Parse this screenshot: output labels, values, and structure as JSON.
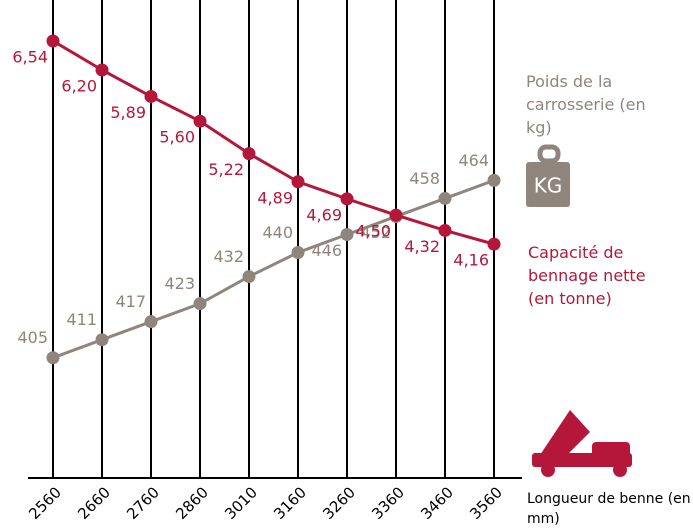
{
  "chart_data": {
    "type": "line",
    "x_label": "Longueur de benne (en mm)",
    "categories": [
      "2560",
      "2660",
      "2760",
      "2860",
      "3010",
      "3160",
      "3260",
      "3360",
      "3460",
      "3560"
    ],
    "series": [
      {
        "name": "Poids de la carrosserie (en kg)",
        "color": "#8f857c",
        "values": [
          405,
          411,
          417,
          423,
          432,
          440,
          446,
          452,
          458,
          464
        ]
      },
      {
        "name": "Capacité de bennage nette (en tonne)",
        "color": "#b5173a",
        "axis": "y2",
        "values": [
          6.54,
          6.2,
          5.89,
          5.6,
          5.22,
          4.89,
          4.69,
          4.5,
          4.32,
          4.16
        ],
        "value_labels": [
          "6,54",
          "6,20",
          "5,89",
          "5,60",
          "5,22",
          "4,89",
          "4,69",
          "4,50",
          "4,32",
          "4,16"
        ]
      }
    ],
    "ylim": [
      365,
      524
    ],
    "y2lim": [
      1.42,
      7.02
    ],
    "icon_label": "KG"
  }
}
